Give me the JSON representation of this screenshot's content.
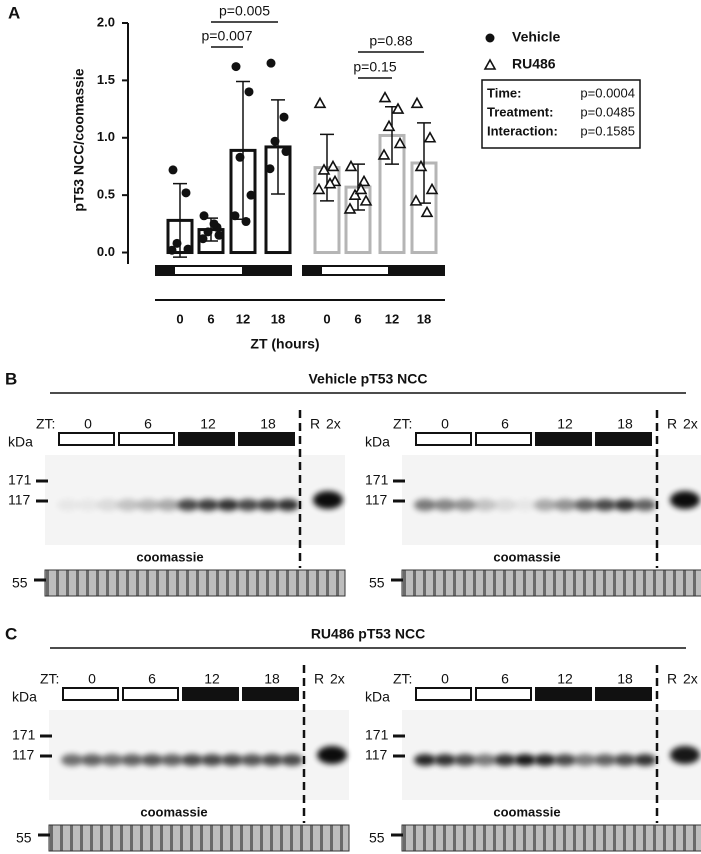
{
  "chart_data": {
    "type": "bar",
    "panel": "A",
    "ylabel": "pT53 NCC/coomassie",
    "xlabel": "ZT (hours)",
    "categories": [
      "0",
      "6",
      "12",
      "18"
    ],
    "series": [
      {
        "name": "Vehicle",
        "color": "#111111",
        "values": [
          0.28,
          0.2,
          0.89,
          0.92
        ],
        "errors": [
          0.32,
          0.1,
          0.6,
          0.41
        ],
        "points": [
          [
            0.72,
            0.52,
            0.08,
            0.03,
            0.02
          ],
          [
            0.32,
            0.22,
            0.18,
            0.15,
            0.12,
            0.25
          ],
          [
            1.62,
            1.4,
            0.83,
            0.5,
            0.32,
            0.27
          ],
          [
            1.65,
            1.18,
            0.97,
            0.88,
            0.73
          ]
        ]
      },
      {
        "name": "RU486",
        "color": "#b5b5b5",
        "values": [
          0.74,
          0.57,
          1.02,
          0.78
        ],
        "errors": [
          0.29,
          0.2,
          0.25,
          0.35
        ],
        "points": [
          [
            1.3,
            0.75,
            0.72,
            0.62,
            0.55,
            0.6
          ],
          [
            0.75,
            0.62,
            0.5,
            0.45,
            0.38,
            0.55
          ],
          [
            1.35,
            1.25,
            1.1,
            0.95,
            0.85
          ],
          [
            1.3,
            1.0,
            0.75,
            0.55,
            0.45,
            0.35
          ]
        ]
      }
    ],
    "annotations": [
      "p=0.007",
      "p=0.005",
      "p=0.15",
      "p=0.88"
    ],
    "stats": [
      {
        "label": "Time:",
        "value": "p=0.0004"
      },
      {
        "label": "Treatment:",
        "value": "p=0.0485"
      },
      {
        "label": "Interaction:",
        "value": "p=0.1585"
      }
    ],
    "ylim": [
      -0.1,
      2.0
    ],
    "yticks": [
      {
        "value": 0,
        "label": "0.0"
      },
      0.5,
      {
        "value": 1,
        "label": "1.0"
      },
      1.5,
      {
        "value": 2,
        "label": "2.0"
      }
    ]
  },
  "panels": [
    {
      "letter": "B",
      "title": "Vehicle pT53 NCC"
    },
    {
      "letter": "C",
      "title": "RU486 pT53 NCC"
    }
  ],
  "blot_labels": {
    "zt": "ZT:",
    "times": [
      "0",
      "6",
      "12",
      "18"
    ],
    "reference": "R",
    "double": "2x",
    "kda": "kDa",
    "markers": [
      "171",
      "117"
    ],
    "coomassie": "coomassie",
    "marker_low": "55"
  }
}
